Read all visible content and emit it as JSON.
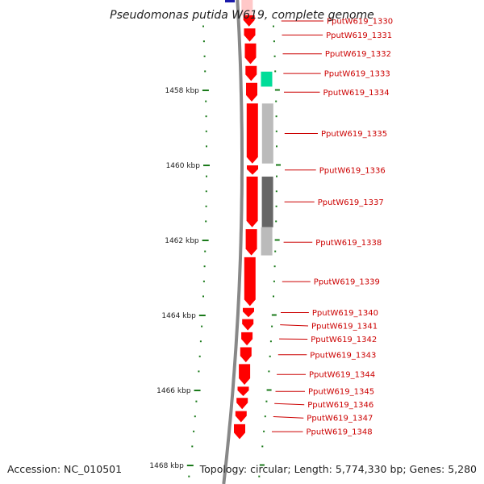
{
  "title": "Pseudomonas putida W619, complete genome",
  "footer": {
    "accession": "Accession: NC_010501",
    "topology": "Topology: circular; Length: 5,774,330 bp; Genes: 5,280"
  },
  "colors": {
    "gene": "#ff0000",
    "gene_faded": "#ffc8c8",
    "tick": "#1a7a1a",
    "backbone": "#888888",
    "label_line": "#cc0000",
    "feature_green": "#00dd99",
    "feature_light_gray": "#bbbbbb",
    "feature_dark_gray": "#666666",
    "feature_blue": "#1a1aaa"
  },
  "ticks": [
    {
      "kbp": 1458,
      "label": "1458 kbp"
    },
    {
      "kbp": 1460,
      "label": "1460 kbp"
    },
    {
      "kbp": 1462,
      "label": "1462 kbp"
    },
    {
      "kbp": 1464,
      "label": "1464 kbp"
    },
    {
      "kbp": 1466,
      "label": "1466 kbp"
    },
    {
      "kbp": 1468,
      "label": "1468 kbp"
    }
  ],
  "genes": [
    {
      "name": "PputW619_1330",
      "start": 1456.0,
      "end": 1456.3
    },
    {
      "name": "PputW619_1331",
      "start": 1456.35,
      "end": 1456.7
    },
    {
      "name": "PputW619_1332",
      "start": 1456.75,
      "end": 1457.3
    },
    {
      "name": "PputW619_1333",
      "start": 1457.35,
      "end": 1457.75
    },
    {
      "name": "PputW619_1334",
      "start": 1457.8,
      "end": 1458.3
    },
    {
      "name": "PputW619_1335",
      "start": 1458.35,
      "end": 1459.95
    },
    {
      "name": "PputW619_1336",
      "start": 1460.0,
      "end": 1460.25
    },
    {
      "name": "PputW619_1337",
      "start": 1460.3,
      "end": 1461.65
    },
    {
      "name": "PputW619_1338",
      "start": 1461.7,
      "end": 1462.4
    },
    {
      "name": "PputW619_1339",
      "start": 1462.45,
      "end": 1463.75
    },
    {
      "name": "PputW619_1340",
      "start": 1463.8,
      "end": 1464.05
    },
    {
      "name": "PputW619_1341",
      "start": 1464.1,
      "end": 1464.4
    },
    {
      "name": "PputW619_1342",
      "start": 1464.45,
      "end": 1464.8
    },
    {
      "name": "PputW619_1343",
      "start": 1464.85,
      "end": 1465.25
    },
    {
      "name": "PputW619_1344",
      "start": 1465.3,
      "end": 1465.85
    },
    {
      "name": "PputW619_1345",
      "start": 1465.9,
      "end": 1466.15
    },
    {
      "name": "PputW619_1346",
      "start": 1466.2,
      "end": 1466.5
    },
    {
      "name": "PputW619_1347",
      "start": 1466.55,
      "end": 1466.85
    },
    {
      "name": "PputW619_1348",
      "start": 1466.9,
      "end": 1467.3
    }
  ],
  "features": [
    {
      "type": "green",
      "start": 1457.5,
      "end": 1457.9
    },
    {
      "type": "light-gray",
      "start": 1458.35,
      "end": 1459.95
    },
    {
      "type": "dark-gray",
      "start": 1460.3,
      "end": 1461.65
    },
    {
      "type": "light-gray",
      "start": 1461.65,
      "end": 1462.4
    }
  ]
}
